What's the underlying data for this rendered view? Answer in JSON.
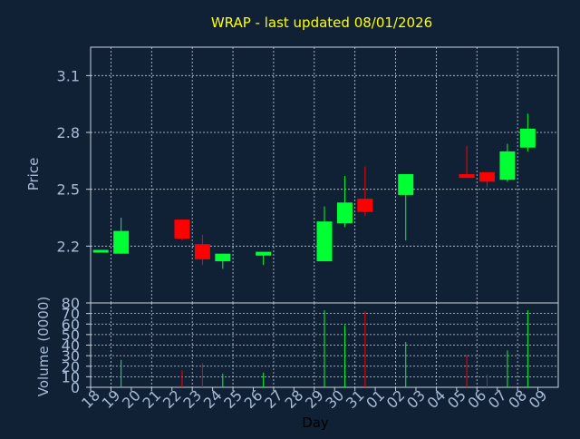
{
  "chart_data": [
    {
      "type": "candlestick",
      "title": "WRAP - last updated 08/01/2026",
      "ylabel": "Price",
      "xlabel": "",
      "ylim": [
        1.9,
        3.25
      ],
      "yticks": [
        "2.2",
        "2.5",
        "2.8",
        "3.1"
      ],
      "grid": true,
      "candles": [
        {
          "day": "18",
          "open": 2.18,
          "close": 2.18,
          "high": 2.18,
          "low": 2.18
        },
        {
          "day": "19",
          "open": 2.16,
          "close": 2.28,
          "high": 2.35,
          "low": 2.16
        },
        {
          "day": "22",
          "open": 2.34,
          "close": 2.24,
          "high": 2.34,
          "low": 2.23
        },
        {
          "day": "23",
          "open": 2.21,
          "close": 2.13,
          "high": 2.26,
          "low": 2.1
        },
        {
          "day": "24",
          "open": 2.12,
          "close": 2.16,
          "high": 2.16,
          "low": 2.08
        },
        {
          "day": "26",
          "open": 2.15,
          "close": 2.17,
          "high": 2.17,
          "low": 2.1
        },
        {
          "day": "29",
          "open": 2.12,
          "close": 2.33,
          "high": 2.41,
          "low": 2.12
        },
        {
          "day": "30",
          "open": 2.32,
          "close": 2.43,
          "high": 2.57,
          "low": 2.3
        },
        {
          "day": "31",
          "open": 2.45,
          "close": 2.38,
          "high": 2.62,
          "low": 2.36
        },
        {
          "day": "02",
          "open": 2.47,
          "close": 2.58,
          "high": 2.58,
          "low": 2.23
        },
        {
          "day": "05",
          "open": 2.58,
          "close": 2.56,
          "high": 2.73,
          "low": 2.56
        },
        {
          "day": "06",
          "open": 2.59,
          "close": 2.54,
          "high": 2.59,
          "low": 2.51
        },
        {
          "day": "07",
          "open": 2.55,
          "close": 2.7,
          "high": 2.74,
          "low": 2.54
        },
        {
          "day": "08",
          "open": 2.72,
          "close": 2.82,
          "high": 2.9,
          "low": 2.7
        }
      ],
      "colors": {
        "up": "#00ff33",
        "down": "#ff0000",
        "background": "#102035",
        "axis_text": "#a9bcd6",
        "title": "#ffff00",
        "grid": "#c9d3e0"
      }
    },
    {
      "type": "bar",
      "ylabel": "Volume (0000)",
      "xlabel": "Day",
      "ylim": [
        0,
        80
      ],
      "yticks": [
        "0",
        "10",
        "20",
        "30",
        "40",
        "50",
        "60",
        "70",
        "80"
      ],
      "categories": [
        "18",
        "19",
        "20",
        "21",
        "22",
        "23",
        "24",
        "25",
        "26",
        "27",
        "28",
        "29",
        "30",
        "31",
        "01",
        "02",
        "03",
        "04",
        "05",
        "06",
        "07",
        "08",
        "09"
      ],
      "values": [
        0,
        26,
        0,
        0,
        16,
        23,
        13,
        0,
        14,
        0,
        0,
        73,
        59,
        72,
        0,
        43,
        0,
        0,
        31,
        12,
        35,
        73,
        0
      ],
      "bar_colors": [
        "up",
        "up",
        "up",
        "up",
        "down",
        "down",
        "up",
        "up",
        "up",
        "up",
        "up",
        "up",
        "up",
        "down",
        "up",
        "up",
        "up",
        "up",
        "down",
        "down",
        "up",
        "up",
        "up"
      ],
      "grid": true
    }
  ]
}
